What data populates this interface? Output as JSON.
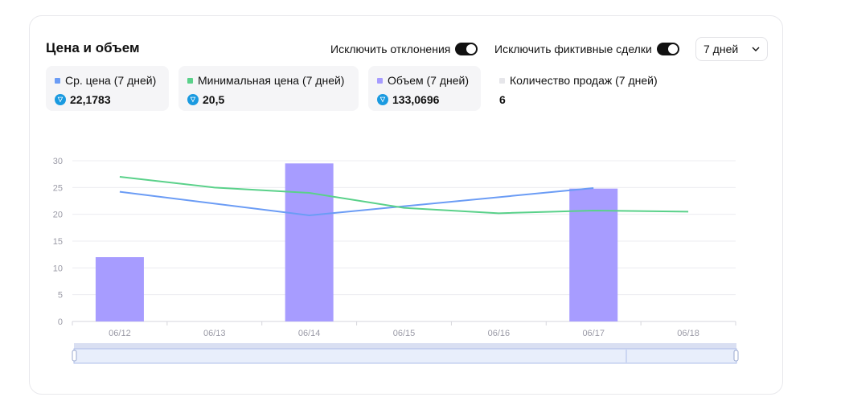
{
  "title": "Цена и объем",
  "toggles": {
    "exclude_outliers": {
      "label": "Исключить отклонения",
      "on": true
    },
    "exclude_fake": {
      "label": "Исключить фиктивные сделки",
      "on": true
    }
  },
  "period": {
    "selected": "7 дней"
  },
  "stats": [
    {
      "label": "Ср. цена (7 дней)",
      "value": "22,1783",
      "color": "#6b9cf5",
      "icon": "ton-icon"
    },
    {
      "label": "Минимальная цена (7 дней)",
      "value": "20,5",
      "color": "#5ad18a",
      "icon": "ton-icon"
    },
    {
      "label": "Объем (7 дней)",
      "value": "133,0696",
      "color": "#a79cff",
      "icon": "ton-icon"
    },
    {
      "label": "Количество продаж (7 дней)",
      "value": "6",
      "color": "#e6e6ea",
      "icon": ""
    }
  ],
  "chart_data": {
    "type": "bar",
    "categories": [
      "06/12",
      "06/13",
      "06/14",
      "06/15",
      "06/16",
      "06/17",
      "06/18"
    ],
    "ylim": [
      0,
      30
    ],
    "yticks": [
      0,
      5,
      10,
      15,
      20,
      25,
      30
    ],
    "grid": true,
    "series": [
      {
        "name": "Объем (7 дней)",
        "kind": "bar",
        "color": "#a79cff",
        "values": [
          12,
          null,
          29.5,
          null,
          null,
          24.8,
          null
        ]
      },
      {
        "name": "Ср. цена (7 дней)",
        "kind": "line",
        "color": "#6b9cf5",
        "values": [
          24.2,
          null,
          19.8,
          null,
          null,
          24.9,
          null
        ]
      },
      {
        "name": "Минимальная цена (7 дней)",
        "kind": "line",
        "color": "#5ad18a",
        "values": [
          27,
          25,
          24,
          21.2,
          20.2,
          20.7,
          20.5
        ]
      }
    ]
  }
}
